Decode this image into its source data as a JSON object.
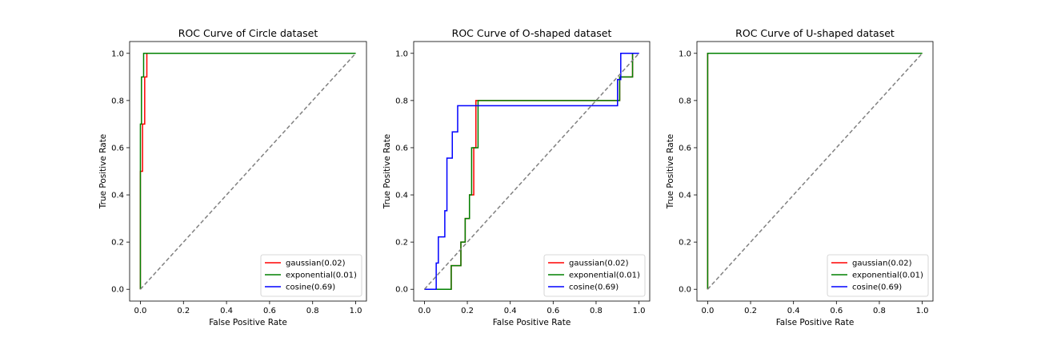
{
  "chart_data": [
    {
      "type": "line",
      "title": "ROC Curve of Circle dataset",
      "xlabel": "False Positive Rate",
      "ylabel": "True Positive Rate",
      "xlim": [
        -0.05,
        1.05
      ],
      "ylim": [
        -0.05,
        1.05
      ],
      "xticks": [
        "0.0",
        "0.2",
        "0.4",
        "0.6",
        "0.8",
        "1.0"
      ],
      "yticks": [
        "0.0",
        "0.2",
        "0.4",
        "0.6",
        "0.8",
        "1.0"
      ],
      "legend_position": "lower-right",
      "grid": false,
      "series": [
        {
          "name": "gaussian(0.02)",
          "color": "#ff0000",
          "x": [
            0,
            0,
            0.01,
            0.01,
            0.02,
            0.02,
            0.03,
            0.03,
            1.0
          ],
          "y": [
            0,
            0.5,
            0.5,
            0.7,
            0.7,
            0.9,
            0.9,
            1.0,
            1.0
          ]
        },
        {
          "name": "exponential(0.01)",
          "color": "#008000",
          "x": [
            0,
            0,
            0.005,
            0.005,
            0.015,
            0.015,
            1.0
          ],
          "y": [
            0,
            0.7,
            0.7,
            0.9,
            0.9,
            1.0,
            1.0
          ]
        },
        {
          "name": "cosine(0.69)",
          "color": "#0000ff",
          "x": [],
          "y": []
        }
      ],
      "reference_line": {
        "x": [
          0,
          1
        ],
        "y": [
          0,
          1
        ],
        "color": "#808080"
      }
    },
    {
      "type": "line",
      "title": "ROC Curve of O-shaped dataset",
      "xlabel": "False Positive Rate",
      "ylabel": "True Positive Rate",
      "xlim": [
        -0.05,
        1.05
      ],
      "ylim": [
        -0.05,
        1.05
      ],
      "xticks": [
        "0.0",
        "0.2",
        "0.4",
        "0.6",
        "0.8",
        "1.0"
      ],
      "yticks": [
        "0.0",
        "0.2",
        "0.4",
        "0.6",
        "0.8",
        "1.0"
      ],
      "legend_position": "lower-right",
      "grid": false,
      "series": [
        {
          "name": "gaussian(0.02)",
          "color": "#ff0000",
          "x": [
            0,
            0.125,
            0.125,
            0.17,
            0.17,
            0.19,
            0.19,
            0.21,
            0.21,
            0.23,
            0.23,
            0.24,
            0.24,
            0.91,
            0.91,
            0.97,
            0.97,
            1.0
          ],
          "y": [
            0,
            0,
            0.1,
            0.1,
            0.2,
            0.2,
            0.3,
            0.3,
            0.4,
            0.4,
            0.6,
            0.6,
            0.8,
            0.8,
            0.9,
            0.9,
            1.0,
            1.0
          ]
        },
        {
          "name": "exponential(0.01)",
          "color": "#008000",
          "x": [
            0,
            0.125,
            0.125,
            0.17,
            0.17,
            0.19,
            0.19,
            0.21,
            0.21,
            0.22,
            0.22,
            0.25,
            0.25,
            0.91,
            0.91,
            0.97,
            0.97,
            1.0
          ],
          "y": [
            0,
            0,
            0.1,
            0.1,
            0.2,
            0.2,
            0.3,
            0.3,
            0.4,
            0.4,
            0.6,
            0.6,
            0.8,
            0.8,
            0.9,
            0.9,
            1.0,
            1.0
          ]
        },
        {
          "name": "cosine(0.69)",
          "color": "#0000ff",
          "x": [
            0,
            0.055,
            0.055,
            0.065,
            0.065,
            0.095,
            0.095,
            0.105,
            0.105,
            0.13,
            0.13,
            0.155,
            0.155,
            0.9,
            0.9,
            0.915,
            0.915,
            1.0
          ],
          "y": [
            0,
            0,
            0.111,
            0.111,
            0.222,
            0.222,
            0.333,
            0.333,
            0.556,
            0.556,
            0.667,
            0.667,
            0.778,
            0.778,
            0.889,
            0.889,
            1.0,
            1.0
          ]
        }
      ],
      "reference_line": {
        "x": [
          0,
          1
        ],
        "y": [
          0,
          1
        ],
        "color": "#808080"
      }
    },
    {
      "type": "line",
      "title": "ROC Curve of U-shaped dataset",
      "xlabel": "False Positive Rate",
      "ylabel": "True Positive Rate",
      "xlim": [
        -0.05,
        1.05
      ],
      "ylim": [
        -0.05,
        1.05
      ],
      "xticks": [
        "0.0",
        "0.2",
        "0.4",
        "0.6",
        "0.8",
        "1.0"
      ],
      "yticks": [
        "0.0",
        "0.2",
        "0.4",
        "0.6",
        "0.8",
        "1.0"
      ],
      "legend_position": "lower-right",
      "grid": false,
      "series": [
        {
          "name": "gaussian(0.02)",
          "color": "#ff0000",
          "x": [
            0,
            0,
            1.0
          ],
          "y": [
            0,
            1.0,
            1.0
          ]
        },
        {
          "name": "exponential(0.01)",
          "color": "#008000",
          "x": [
            0,
            0,
            1.0
          ],
          "y": [
            0,
            1.0,
            1.0
          ]
        },
        {
          "name": "cosine(0.69)",
          "color": "#0000ff",
          "x": [],
          "y": []
        }
      ],
      "reference_line": {
        "x": [
          0,
          1
        ],
        "y": [
          0,
          1
        ],
        "color": "#808080"
      }
    }
  ]
}
